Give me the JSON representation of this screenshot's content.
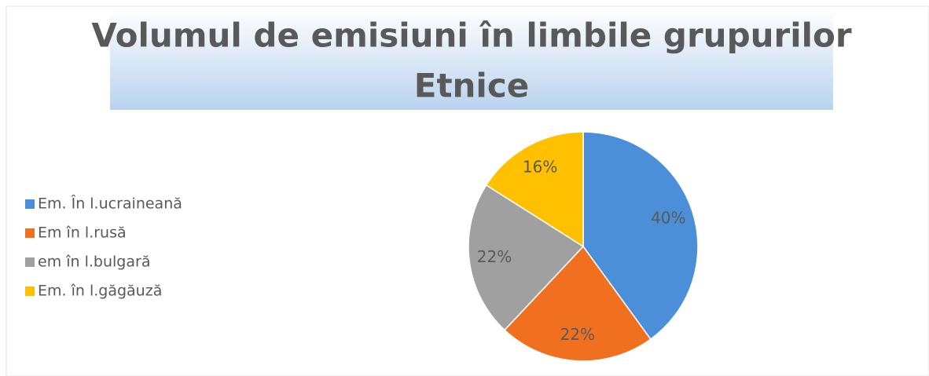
{
  "chart_data": {
    "type": "pie",
    "title": [
      "Volumul de emisiuni în limbile grupurilor",
      "Etnice"
    ],
    "categories": [
      "Em. În l.ucraineană",
      "Em în l.rusă",
      "em în l.bulgară",
      "Em. în l.găgăuză"
    ],
    "values": [
      40,
      22,
      22,
      16
    ],
    "value_labels": [
      "40%",
      "22%",
      "22%",
      "16%"
    ],
    "colors": [
      "#4a8fd8",
      "#f07020",
      "#a0a0a0",
      "#ffc000"
    ],
    "legend": "left"
  }
}
